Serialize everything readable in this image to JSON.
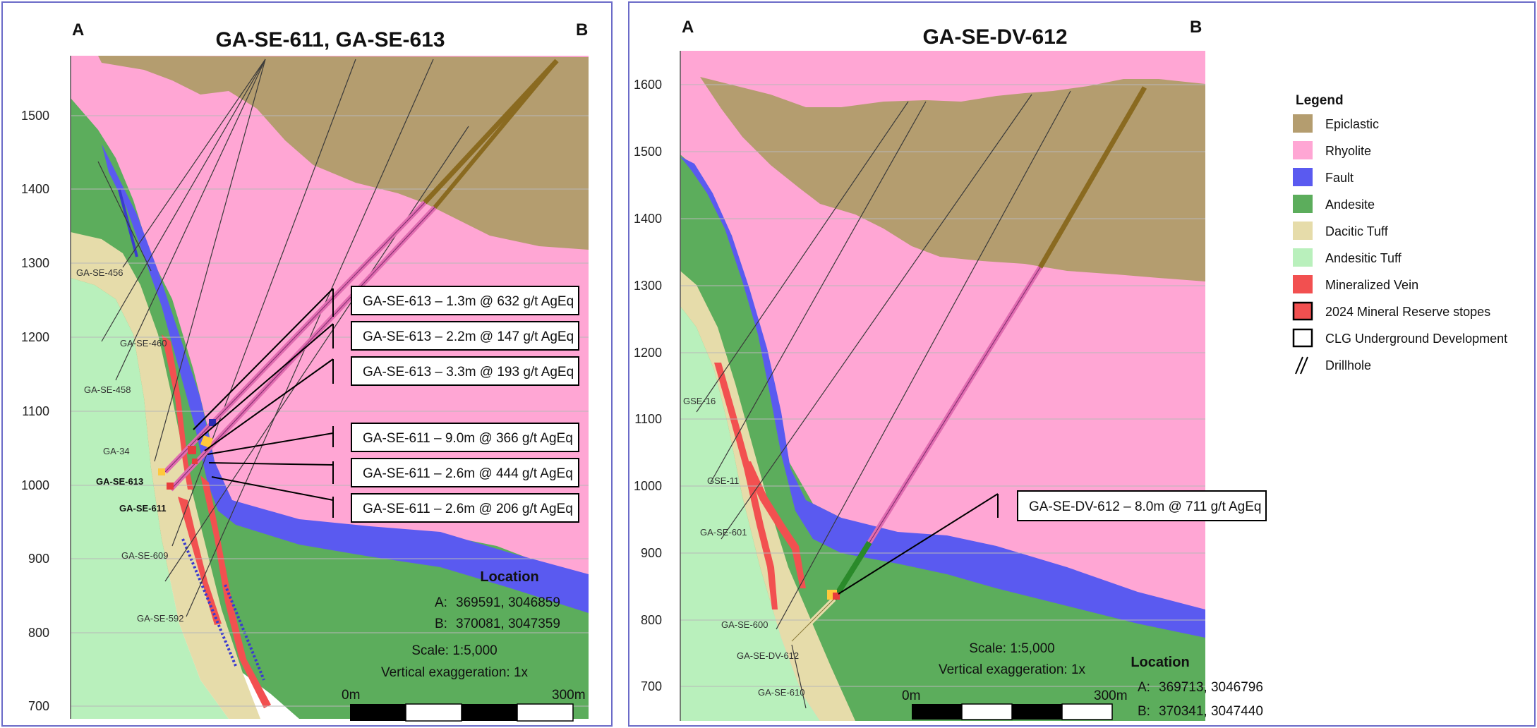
{
  "left_section": {
    "title": "GA-SE-611, GA-SE-613",
    "corner_a": "A",
    "corner_b": "B",
    "y_ticks": [
      "1500",
      "1400",
      "1300",
      "1200",
      "1100",
      "1000",
      "900",
      "800",
      "700"
    ],
    "hole_labels": [
      "GA-SE-456",
      "GA-SE-460",
      "GA-SE-458",
      "GA-34",
      "GA-SE-613",
      "GA-SE-611",
      "GA-SE-609",
      "GA-SE-592"
    ],
    "intercepts": [
      "GA-SE-613 –  1.3m @ 632 g/t AgEq",
      "GA-SE-613 – 2.2m @ 147 g/t AgEq",
      "GA-SE-613 – 3.3m @ 193 g/t AgEq",
      "GA-SE-611 –  9.0m @ 366 g/t AgEq",
      "GA-SE-611 – 2.6m @ 444 g/t AgEq",
      "GA-SE-611 – 2.6m @ 206 g/t AgEq"
    ],
    "location_title": "Location",
    "location_a_label": "A:",
    "location_a": "369591, 3046859",
    "location_b_label": "B:",
    "location_b": "370081, 3047359",
    "scale": "Scale: 1:5,000",
    "vertical_exaggeration": "Vertical exaggeration: 1x",
    "scalebar_start": "0m",
    "scalebar_end": "300m"
  },
  "right_section": {
    "title": "GA-SE-DV-612",
    "corner_a": "A",
    "corner_b": "B",
    "y_ticks": [
      "1600",
      "1500",
      "1400",
      "1300",
      "1200",
      "1100",
      "1000",
      "900",
      "800",
      "700"
    ],
    "hole_labels": [
      "GSE-16",
      "GSE-11",
      "GA-SE-601",
      "GA-SE-600",
      "GA-SE-DV-612",
      "GA-SE-610"
    ],
    "intercept": "GA-SE-DV-612  –  8.0m @ 711 g/t AgEq",
    "scale": "Scale: 1:5,000",
    "vertical_exaggeration": "Vertical exaggeration: 1x",
    "scalebar_start": "0m",
    "scalebar_end": "300m",
    "location_title": "Location",
    "location_a_label": "A:",
    "location_a": "369713, 3046796",
    "location_b_label": "B:",
    "location_b": "370341, 3047440"
  },
  "legend": {
    "title": "Legend",
    "items": [
      {
        "label": "Epiclastic",
        "color": "#b49d6f",
        "type": "fill"
      },
      {
        "label": "Rhyolite",
        "color": "#ffa6d4",
        "type": "fill"
      },
      {
        "label": "Fault",
        "color": "#5a5af0",
        "type": "fill"
      },
      {
        "label": "Andesite",
        "color": "#5cad5c",
        "type": "fill"
      },
      {
        "label": "Dacitic Tuff",
        "color": "#e6dcaa",
        "type": "fill"
      },
      {
        "label": "Andesitic Tuff",
        "color": "#b9f0bc",
        "type": "fill"
      },
      {
        "label": "Mineralized Vein",
        "color": "#f25050",
        "type": "fill"
      },
      {
        "label": "2024 Mineral Reserve stopes",
        "color": "#f25050",
        "type": "outline-thick"
      },
      {
        "label": "CLG Underground  Development",
        "color": "#ffffff",
        "type": "outline"
      },
      {
        "label": "Drillhole",
        "color": "#000000",
        "type": "drillhole"
      }
    ]
  }
}
